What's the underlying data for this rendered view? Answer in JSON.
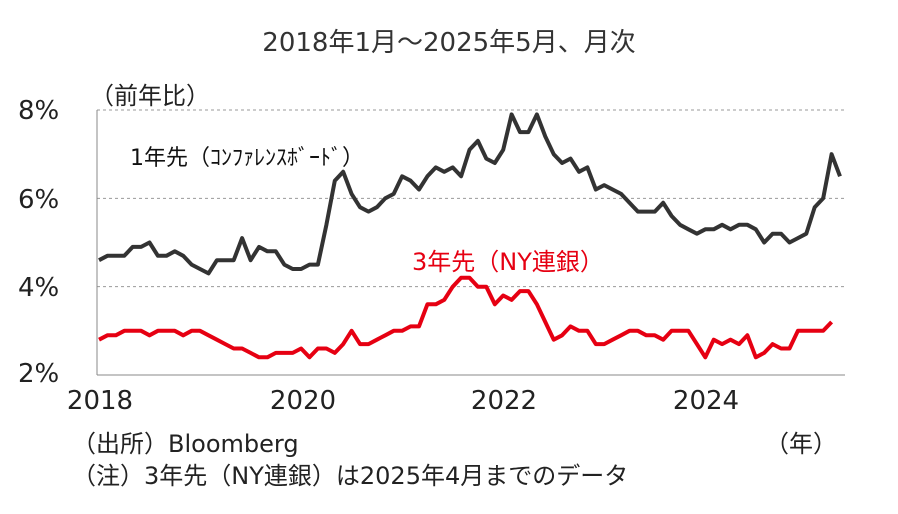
{
  "title": "2018年1月～2025年5月、月次",
  "y_unit": "（前年比）",
  "x_unit": "（年）",
  "source": "（出所）Bloomberg",
  "note": "（注）3年先（NY連銀）は2025年4月までのデータ",
  "colors": {
    "conference_board": "#333333",
    "ny_fed": "#e60012",
    "grid": "#999999"
  },
  "chart_data": {
    "type": "line",
    "title": "2018年1月～2025年5月、月次",
    "ylabel": "（前年比）",
    "xlabel": "（年）",
    "ylim": [
      2,
      8
    ],
    "yticks": [
      "2%",
      "4%",
      "6%",
      "8%"
    ],
    "xticks": [
      "2018",
      "2020",
      "2022",
      "2024"
    ],
    "grid": "horizontal dashed",
    "start": "2018-01",
    "series": [
      {
        "name": "1年先（ｺﾝﾌｧﾚﾝｽﾎﾞｰﾄﾞ）",
        "values": [
          4.6,
          4.7,
          4.7,
          4.7,
          4.9,
          4.9,
          5.0,
          4.7,
          4.7,
          4.8,
          4.7,
          4.5,
          4.4,
          4.3,
          4.6,
          4.6,
          4.6,
          5.1,
          4.6,
          4.9,
          4.8,
          4.8,
          4.5,
          4.4,
          4.4,
          4.5,
          4.5,
          5.4,
          6.4,
          6.6,
          6.1,
          5.8,
          5.7,
          5.8,
          6.0,
          6.1,
          6.5,
          6.4,
          6.2,
          6.5,
          6.7,
          6.6,
          6.7,
          6.5,
          7.1,
          7.3,
          6.9,
          6.8,
          7.1,
          7.9,
          7.5,
          7.5,
          7.9,
          7.4,
          7.0,
          6.8,
          6.9,
          6.6,
          6.7,
          6.2,
          6.3,
          6.2,
          6.1,
          5.9,
          5.7,
          5.7,
          5.7,
          5.9,
          5.6,
          5.4,
          5.3,
          5.2,
          5.3,
          5.3,
          5.4,
          5.3,
          5.4,
          5.4,
          5.3,
          5.0,
          5.2,
          5.2,
          5.0,
          5.1,
          5.2,
          5.8,
          6.0,
          7.0,
          6.5
        ]
      },
      {
        "name": "3年先（NY連銀）",
        "values": [
          2.8,
          2.9,
          2.9,
          3.0,
          3.0,
          3.0,
          2.9,
          3.0,
          3.0,
          3.0,
          2.9,
          3.0,
          3.0,
          2.9,
          2.8,
          2.7,
          2.6,
          2.6,
          2.5,
          2.4,
          2.4,
          2.5,
          2.5,
          2.5,
          2.6,
          2.4,
          2.6,
          2.6,
          2.5,
          2.7,
          3.0,
          2.7,
          2.7,
          2.8,
          2.9,
          3.0,
          3.0,
          3.1,
          3.1,
          3.6,
          3.6,
          3.7,
          4.0,
          4.2,
          4.2,
          4.0,
          4.0,
          3.6,
          3.8,
          3.7,
          3.9,
          3.9,
          3.6,
          3.2,
          2.8,
          2.9,
          3.1,
          3.0,
          3.0,
          2.7,
          2.7,
          2.8,
          2.9,
          3.0,
          3.0,
          2.9,
          2.9,
          2.8,
          3.0,
          3.0,
          3.0,
          2.7,
          2.4,
          2.8,
          2.7,
          2.8,
          2.7,
          2.9,
          2.4,
          2.5,
          2.7,
          2.6,
          2.6,
          3.0,
          3.0,
          3.0,
          3.0,
          3.2
        ]
      }
    ]
  }
}
